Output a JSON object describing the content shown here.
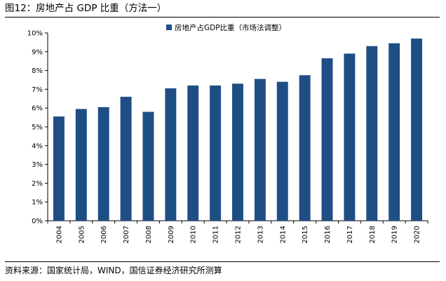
{
  "figure": {
    "title": "图12：房地产占 GDP 比重（方法一）",
    "source": "资料来源：国家统计局，WIND，国信证券经济研究所测算"
  },
  "chart_data": {
    "type": "bar",
    "categories": [
      "2004",
      "2005",
      "2006",
      "2007",
      "2008",
      "2009",
      "2010",
      "2011",
      "2012",
      "2013",
      "2014",
      "2015",
      "2016",
      "2017",
      "2018",
      "2019",
      "2020"
    ],
    "series": [
      {
        "name": "房地产占GDP比重（市场法调整）",
        "color": "#1f4e85",
        "values": [
          5.55,
          5.95,
          6.05,
          6.6,
          5.8,
          7.05,
          7.2,
          7.2,
          7.3,
          7.55,
          7.4,
          7.75,
          8.65,
          8.9,
          9.3,
          9.45,
          9.7
        ]
      }
    ],
    "y_ticks": [
      "0%",
      "1%",
      "2%",
      "3%",
      "4%",
      "5%",
      "6%",
      "7%",
      "8%",
      "9%",
      "10%"
    ],
    "ylim": [
      0,
      10
    ],
    "y_unit": "%",
    "grid": false,
    "legend_position": "top-center",
    "title": "",
    "xlabel": "",
    "ylabel": ""
  }
}
